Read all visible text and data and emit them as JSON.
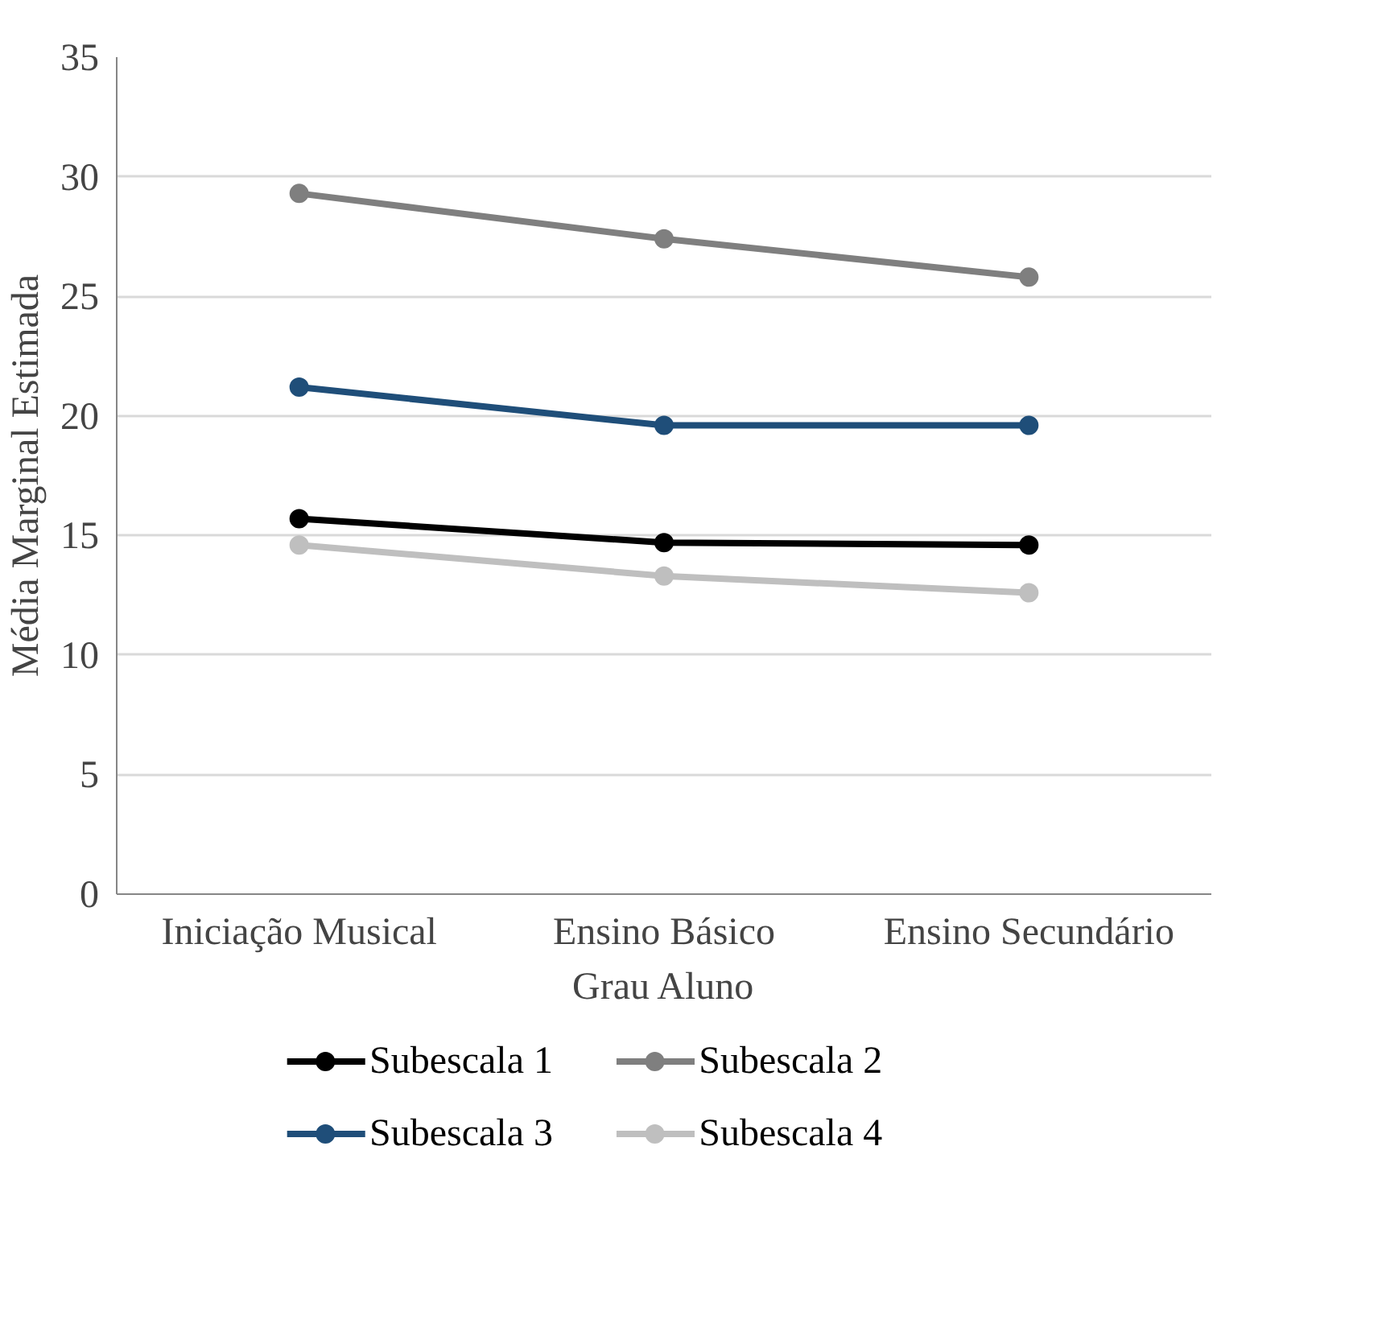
{
  "chart_data": {
    "type": "line",
    "xlabel": "Grau Aluno",
    "ylabel": "Média Marginal Estimada",
    "categories": [
      "Iniciação Musical",
      "Ensino Básico",
      "Ensino Secundário"
    ],
    "series": [
      {
        "name": "Subescala 1",
        "color": "#000000",
        "values": [
          15.7,
          14.7,
          14.6
        ]
      },
      {
        "name": "Subescala 2",
        "color": "#7f7f7f",
        "values": [
          29.3,
          27.4,
          25.8
        ]
      },
      {
        "name": "Subescala 3",
        "color": "#1f4e79",
        "values": [
          21.2,
          19.6,
          19.6
        ]
      },
      {
        "name": "Subescala 4",
        "color": "#bfbfbf",
        "values": [
          14.6,
          13.3,
          12.6
        ]
      }
    ],
    "ylim": [
      0,
      35
    ],
    "yticks": [
      0,
      5,
      10,
      15,
      20,
      25,
      30,
      35
    ],
    "grid": "y",
    "legend": "bottom",
    "marker": "circle",
    "line_style": "solid"
  }
}
